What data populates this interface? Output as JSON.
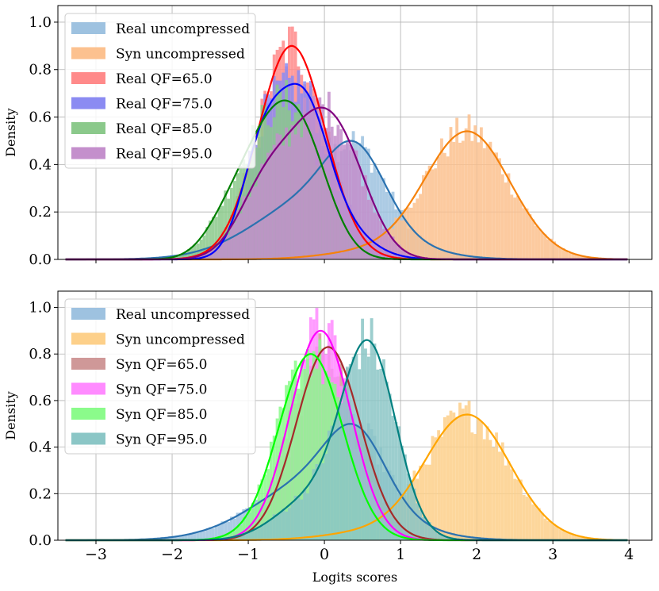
{
  "chart_data": [
    {
      "type": "histogram+kde",
      "ylabel": "Density",
      "xlabel": "",
      "xlim": [
        -3.5,
        4.3
      ],
      "ylim": [
        0,
        1.07
      ],
      "xticks": [
        -3,
        -2,
        -1,
        0,
        1,
        2,
        3,
        4
      ],
      "yticks": [
        0.0,
        0.2,
        0.4,
        0.6,
        0.8,
        1.0
      ],
      "ytick_labels": [
        "0.0",
        "0.2",
        "0.4",
        "0.6",
        "0.8",
        "1.0"
      ],
      "show_x_tick_labels": false,
      "grid": true,
      "legend_position": "top-left",
      "series": [
        {
          "name": "Real uncompressed",
          "fill": "#9ec2e0",
          "line": "#2b72b0",
          "peak_x": 0.38,
          "peak_y": 0.5
        },
        {
          "name": "Syn uncompressed",
          "fill": "#fcc18f",
          "line": "#f5820c",
          "peak_x": 1.88,
          "peak_y": 0.54
        },
        {
          "name": "Real QF=65.0",
          "fill": "#ff8a8a",
          "line": "#ff0000",
          "peak_x": -0.43,
          "peak_y": 0.9
        },
        {
          "name": "Real QF=75.0",
          "fill": "#8b8bf2",
          "line": "#0000ff",
          "peak_x": -0.4,
          "peak_y": 0.74
        },
        {
          "name": "Real QF=85.0",
          "fill": "#8bc98b",
          "line": "#008000",
          "peak_x": -0.72,
          "peak_y": 0.67
        },
        {
          "name": "Real QF=95.0",
          "fill": "#c48fcc",
          "line": "#800080",
          "peak_x": -0.1,
          "peak_y": 0.64
        }
      ]
    },
    {
      "type": "histogram+kde",
      "ylabel": "Density",
      "xlabel": "Logits scores",
      "xlim": [
        -3.5,
        4.3
      ],
      "ylim": [
        0,
        1.07
      ],
      "xticks": [
        -3,
        -2,
        -1,
        0,
        1,
        2,
        3,
        4
      ],
      "xtick_labels": [
        "−3",
        "−2",
        "−1",
        "0",
        "1",
        "2",
        "3",
        "4"
      ],
      "yticks": [
        0.0,
        0.2,
        0.4,
        0.6,
        0.8,
        1.0
      ],
      "ytick_labels": [
        "0.0",
        "0.2",
        "0.4",
        "0.6",
        "0.8",
        "1.0"
      ],
      "show_x_tick_labels": true,
      "grid": true,
      "legend_position": "top-left",
      "series": [
        {
          "name": "Real uncompressed",
          "fill": "#9ec2e0",
          "line": "#2b72b0",
          "peak_x": 0.38,
          "peak_y": 0.5
        },
        {
          "name": "Syn uncompressed",
          "fill": "#fdd08a",
          "line": "#ffa500",
          "peak_x": 1.88,
          "peak_y": 0.54
        },
        {
          "name": "Syn QF=65.0",
          "fill": "#cf9898",
          "line": "#a52a2a",
          "peak_x": 0.05,
          "peak_y": 0.83
        },
        {
          "name": "Syn QF=75.0",
          "fill": "#ff8bff",
          "line": "#ff00ff",
          "peak_x": -0.05,
          "peak_y": 0.9
        },
        {
          "name": "Syn QF=85.0",
          "fill": "#8bfb8b",
          "line": "#00ff00",
          "peak_x": -0.18,
          "peak_y": 0.8
        },
        {
          "name": "Syn QF=95.0",
          "fill": "#8bc6c6",
          "line": "#008080",
          "peak_x": 0.58,
          "peak_y": 0.86
        }
      ]
    }
  ]
}
